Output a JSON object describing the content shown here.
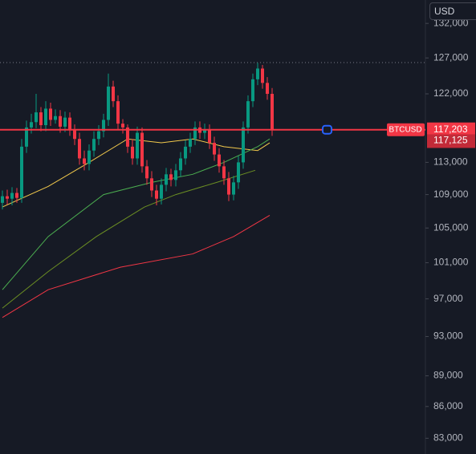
{
  "ui": {
    "currency_button": "USD"
  },
  "chart_data": {
    "type": "candlestick",
    "log_scale": true,
    "symbol": "BTCUSD",
    "up_color": "#089981",
    "down_color": "#f23645",
    "ylim": [
      81550,
      135500
    ],
    "yticks": [
      {
        "value": 83000,
        "label": "83,000"
      },
      {
        "value": 86000,
        "label": "86,000"
      },
      {
        "value": 89000,
        "label": "89,000"
      },
      {
        "value": 93000,
        "label": "93,000"
      },
      {
        "value": 97000,
        "label": "97,000"
      },
      {
        "value": 101000,
        "label": "101,000"
      },
      {
        "value": 105000,
        "label": "105,000"
      },
      {
        "value": 109000,
        "label": "109,000"
      },
      {
        "value": 113000,
        "label": "113,000"
      },
      {
        "value": 122000,
        "label": "122,000"
      },
      {
        "value": 127000,
        "label": "127,000"
      },
      {
        "value": 132000,
        "label": "132,000"
      }
    ],
    "price_line": {
      "value": 117203,
      "label": "117,203",
      "color": "#f23645"
    },
    "second_price": {
      "value": 117125,
      "label": "117,125"
    },
    "open": [
      108000,
      108800,
      108500,
      109200,
      108600,
      115000,
      117500,
      118200,
      119500,
      117800,
      120000,
      118500,
      119000,
      117600,
      118800,
      117200,
      116000,
      113500,
      112800,
      114500,
      116000,
      117000,
      118500,
      123000,
      121000,
      118000,
      117500,
      115000,
      113500,
      116800,
      112500,
      111000,
      109500,
      108500,
      110200,
      111500,
      110800,
      112000,
      113500,
      115000,
      116000,
      117500,
      116800,
      117200,
      115500,
      114000,
      112500,
      111000,
      109000,
      110500,
      113000,
      117500,
      121000,
      124000,
      125500,
      123500,
      122000
    ],
    "close": [
      108800,
      108500,
      109200,
      108600,
      115000,
      117500,
      118200,
      119500,
      117800,
      120000,
      118500,
      119000,
      117600,
      118800,
      117200,
      116000,
      113500,
      112800,
      114500,
      116000,
      117000,
      118500,
      123000,
      121000,
      118000,
      117500,
      115000,
      113500,
      116800,
      112500,
      111000,
      109500,
      108500,
      110200,
      111500,
      110800,
      112000,
      113500,
      115000,
      116000,
      117500,
      116800,
      117200,
      115500,
      114000,
      112500,
      111000,
      109000,
      110500,
      113000,
      117500,
      121000,
      124000,
      125500,
      123500,
      122000,
      117200
    ],
    "high": [
      109500,
      109600,
      109900,
      109800,
      116000,
      118400,
      119300,
      122000,
      120200,
      121000,
      120800,
      119900,
      119800,
      119600,
      119500,
      117900,
      116800,
      114500,
      115300,
      117000,
      117800,
      119300,
      124800,
      123800,
      121800,
      118600,
      117900,
      116000,
      117600,
      117500,
      113300,
      111900,
      110200,
      111000,
      112300,
      112200,
      112800,
      114300,
      115800,
      116800,
      118300,
      118300,
      118000,
      117900,
      116300,
      114800,
      113300,
      111800,
      111300,
      113800,
      118300,
      121800,
      124800,
      126300,
      126000,
      124300,
      122800
    ],
    "low": [
      107200,
      107800,
      107700,
      108000,
      108000,
      114200,
      116700,
      117400,
      117000,
      117000,
      117700,
      118000,
      116800,
      116900,
      116400,
      115200,
      112700,
      112000,
      112000,
      113700,
      115200,
      116200,
      117700,
      120200,
      117200,
      116700,
      114200,
      112700,
      112700,
      111700,
      110200,
      108700,
      107700,
      107800,
      109400,
      110000,
      110000,
      111200,
      112700,
      114200,
      115200,
      116000,
      116000,
      114700,
      113200,
      111700,
      110200,
      108200,
      108300,
      109700,
      112200,
      116700,
      120200,
      123200,
      122700,
      121200,
      116400
    ],
    "overlays": [
      {
        "color": "#f2c94c",
        "x": [
          0,
          9.5,
          18,
          26,
          33,
          39.5,
          46,
          53,
          55.5
        ],
        "values": [
          107500,
          110000,
          113000,
          116000,
          115500,
          116000,
          115000,
          114500,
          115500
        ]
      },
      {
        "color": "#4caf50",
        "x": [
          0,
          9.5,
          21,
          31,
          39.5,
          46,
          53,
          55.5
        ],
        "values": [
          98000,
          104000,
          109000,
          110500,
          111500,
          113000,
          115000,
          116000
        ]
      },
      {
        "color": "#6b8e23",
        "x": [
          0,
          9.5,
          19.5,
          29.5,
          36,
          44.5,
          52.5
        ],
        "values": [
          96000,
          100000,
          104000,
          107500,
          109000,
          110500,
          112000
        ]
      },
      {
        "color": "#f23645",
        "x": [
          0,
          9.5,
          24.5,
          39.5,
          48,
          55.5
        ],
        "values": [
          95000,
          98000,
          100500,
          102000,
          104000,
          106500
        ]
      }
    ]
  }
}
